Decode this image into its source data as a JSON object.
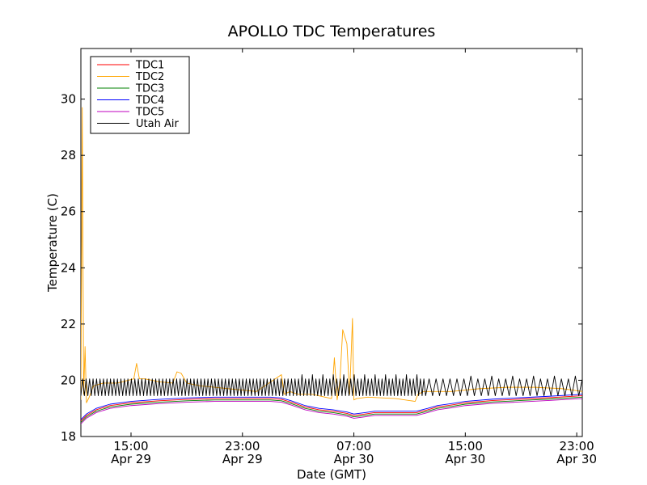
{
  "chart_data": {
    "type": "line",
    "title": "APOLLO TDC Temperatures",
    "xlabel": "Date (GMT)",
    "ylabel": "Temperature (C)",
    "xlim_hours": [
      11.4,
      47.4
    ],
    "ylim": [
      18,
      31.8
    ],
    "yticks": [
      18,
      20,
      22,
      24,
      26,
      28,
      30
    ],
    "xticks": [
      {
        "hours": 15,
        "time": "15:00",
        "date": "Apr 29"
      },
      {
        "hours": 23,
        "time": "23:00",
        "date": "Apr 29"
      },
      {
        "hours": 31,
        "time": "07:00",
        "date": "Apr 30"
      },
      {
        "hours": 39,
        "time": "15:00",
        "date": "Apr 30"
      },
      {
        "hours": 47,
        "time": "23:00",
        "date": "Apr 30"
      }
    ],
    "legend_position": "top-left",
    "series": [
      {
        "name": "TDC1",
        "color": "#ff0000",
        "x": [
          11.4,
          11.8,
          12.5,
          13.5,
          15,
          17,
          19,
          21,
          23,
          25,
          25.8,
          26.5,
          27.5,
          28.5,
          29.5,
          30.5,
          31,
          31.8,
          32.5,
          34,
          35.5,
          36.3,
          37,
          38,
          39,
          41,
          43,
          45,
          47.4
        ],
        "values": [
          18.55,
          18.75,
          18.95,
          19.1,
          19.2,
          19.27,
          19.32,
          19.35,
          19.35,
          19.35,
          19.32,
          19.22,
          19.05,
          18.95,
          18.9,
          18.82,
          18.75,
          18.8,
          18.85,
          18.85,
          18.85,
          18.95,
          19.05,
          19.12,
          19.2,
          19.28,
          19.33,
          19.38,
          19.45
        ]
      },
      {
        "name": "TDC2",
        "color": "#ffa500",
        "x": [
          11.4,
          11.5,
          11.6,
          11.7,
          11.8,
          12.0,
          12.3,
          13.0,
          14.0,
          15.2,
          15.4,
          15.6,
          16.0,
          17.0,
          18.0,
          18.3,
          18.6,
          19.0,
          20.0,
          22.0,
          24.0,
          25.8,
          26.0,
          26.4,
          27.0,
          28.0,
          29.4,
          29.6,
          29.8,
          30.0,
          30.2,
          30.5,
          30.7,
          30.9,
          31.0,
          31.2,
          32.0,
          34.0,
          35.4,
          35.6,
          36.0,
          38.0,
          40.0,
          42.0,
          44.0,
          46.0,
          47.4
        ],
        "values": [
          19.3,
          29.7,
          19.5,
          21.2,
          19.2,
          19.4,
          19.8,
          19.9,
          19.9,
          20.05,
          20.6,
          20.05,
          20.05,
          19.95,
          19.9,
          20.3,
          20.25,
          19.9,
          19.8,
          19.7,
          19.6,
          20.2,
          19.5,
          19.6,
          19.5,
          19.5,
          19.35,
          20.8,
          19.3,
          20.0,
          21.8,
          21.3,
          19.5,
          22.2,
          19.3,
          19.35,
          19.4,
          19.35,
          19.25,
          19.5,
          19.6,
          19.6,
          19.7,
          19.75,
          19.75,
          19.7,
          19.6
        ]
      },
      {
        "name": "TDC3",
        "color": "#008000",
        "x": [
          11.4,
          11.8,
          12.5,
          13.5,
          15,
          17,
          19,
          21,
          23,
          25,
          25.8,
          26.5,
          27.5,
          28.5,
          29.5,
          30.5,
          31,
          31.8,
          32.5,
          34,
          35.5,
          36.3,
          37,
          38,
          39,
          41,
          43,
          45,
          47.4
        ],
        "values": [
          18.5,
          18.7,
          18.9,
          19.05,
          19.15,
          19.22,
          19.27,
          19.3,
          19.3,
          19.3,
          19.27,
          19.17,
          19.0,
          18.9,
          18.85,
          18.77,
          18.7,
          18.75,
          18.8,
          18.8,
          18.8,
          18.9,
          19.0,
          19.07,
          19.15,
          19.23,
          19.28,
          19.33,
          19.4
        ]
      },
      {
        "name": "TDC4",
        "color": "#0000ff",
        "x": [
          11.4,
          11.8,
          12.5,
          13.5,
          15,
          17,
          19,
          21,
          23,
          25,
          25.8,
          26.5,
          27.5,
          28.5,
          29.5,
          30.5,
          31,
          31.8,
          32.5,
          34,
          35.5,
          36.3,
          37,
          38,
          39,
          41,
          43,
          45,
          47.4
        ],
        "values": [
          18.6,
          18.8,
          19.0,
          19.15,
          19.25,
          19.32,
          19.37,
          19.4,
          19.4,
          19.4,
          19.37,
          19.27,
          19.1,
          19.0,
          18.95,
          18.87,
          18.8,
          18.85,
          18.9,
          18.9,
          18.9,
          19.0,
          19.1,
          19.17,
          19.25,
          19.33,
          19.38,
          19.43,
          19.5
        ]
      },
      {
        "name": "TDC5",
        "color": "#bf00bf",
        "x": [
          11.4,
          11.8,
          12.5,
          13.5,
          15,
          17,
          19,
          21,
          23,
          25,
          25.8,
          26.5,
          27.5,
          28.5,
          29.5,
          30.5,
          31,
          31.8,
          32.5,
          34,
          35.5,
          36.3,
          37,
          38,
          39,
          41,
          43,
          45,
          47.4
        ],
        "values": [
          18.45,
          18.65,
          18.85,
          19.0,
          19.1,
          19.17,
          19.22,
          19.25,
          19.25,
          19.25,
          19.22,
          19.12,
          18.95,
          18.85,
          18.8,
          18.72,
          18.65,
          18.7,
          18.75,
          18.75,
          18.75,
          18.85,
          18.95,
          19.02,
          19.1,
          19.18,
          19.23,
          19.28,
          19.35
        ]
      },
      {
        "name": "Utah Air",
        "color": "#000000",
        "oscillation": {
          "x_start": 11.4,
          "x_end": 47.4,
          "cycle_hours": 0.25,
          "cycle_hours_after_36h": 0.5,
          "low": 19.45,
          "high": 20.05,
          "peak_bursts": [
            {
              "x_range": [
                26.5,
                35.5
              ],
              "high": 20.2
            },
            {
              "x_range": [
                38.0,
                47.4
              ],
              "high": 20.15
            }
          ]
        }
      }
    ]
  }
}
